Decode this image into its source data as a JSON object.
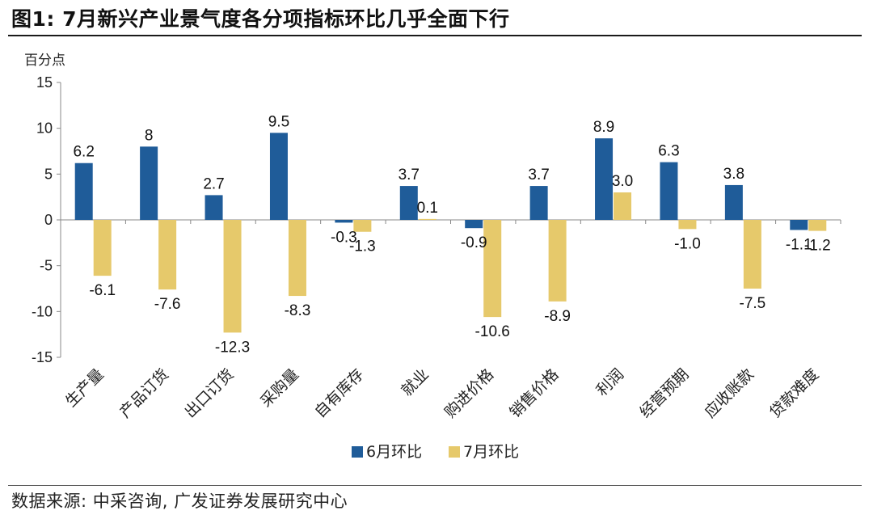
{
  "header": {
    "title": "图1:  7月新兴产业景气度各分项指标环比几乎全面下行"
  },
  "footer": {
    "source": "数据来源:  中采咨询, 广发证券发展研究中心"
  },
  "chart_data": {
    "type": "bar",
    "ylabel": "百分点",
    "ylim": [
      -15,
      15
    ],
    "yticks": [
      15,
      10,
      5,
      0,
      -5,
      -10,
      -15
    ],
    "categories": [
      "生产量",
      "产品订货",
      "出口订货",
      "采购量",
      "自有库存",
      "就业",
      "购进价格",
      "销售价格",
      "利润",
      "经营预期",
      "应收账款",
      "贷款难度"
    ],
    "series": [
      {
        "name": "6月环比",
        "color": "#1f5c99",
        "values": [
          6.2,
          8,
          2.7,
          9.5,
          -0.3,
          3.7,
          -0.9,
          3.7,
          8.9,
          6.3,
          3.8,
          -1.1
        ],
        "labels": [
          "6.2",
          "8",
          "2.7",
          "9.5",
          "-0.3",
          "3.7",
          "-0.9",
          "3.7",
          "8.9",
          "6.3",
          "3.8",
          "-1.1"
        ]
      },
      {
        "name": "7月环比",
        "color": "#e6c96b",
        "values": [
          -6.1,
          -7.6,
          -12.3,
          -8.3,
          -1.3,
          0.1,
          -10.6,
          -8.9,
          3.0,
          -1.0,
          -7.5,
          -1.2
        ],
        "labels": [
          "-6.1",
          "-7.6",
          "-12.3",
          "-8.3",
          "-1.3",
          "0.1",
          "-10.6",
          "-8.9",
          "3.0",
          "-1.0",
          "-7.5",
          "-1.2"
        ]
      }
    ]
  }
}
